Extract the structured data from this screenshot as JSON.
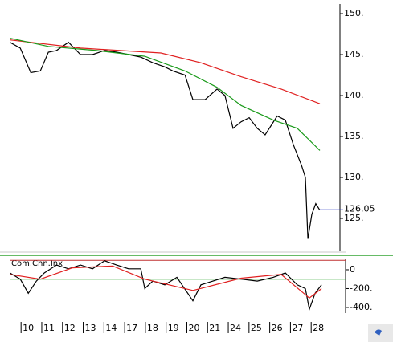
{
  "chart_data": [
    {
      "type": "line",
      "xlim": [
        -0.55,
        15.66
      ],
      "ylim": [
        120.98,
        151.18
      ],
      "yticks": [
        {
          "value": 150,
          "label": "150."
        },
        {
          "value": 145,
          "label": "145."
        },
        {
          "value": 140,
          "label": "140."
        },
        {
          "value": 135,
          "label": "135."
        },
        {
          "value": 130,
          "label": "130."
        },
        {
          "value": 125,
          "label": "125."
        }
      ],
      "series": [
        {
          "color": "#000000",
          "x": [
            -0.54,
            -0.04,
            0.47,
            0.93,
            1.32,
            1.71,
            2.29,
            2.87,
            3.45,
            4.03,
            4.61,
            5.19,
            5.78,
            6.36,
            6.94,
            7.33,
            7.91,
            8.29,
            8.88,
            9.46,
            9.84,
            10.23,
            10.62,
            11.01,
            11.4,
            11.78,
            12.36,
            12.75,
            13.14,
            13.53,
            13.72,
            13.84,
            14.03,
            14.22,
            14.42
          ],
          "values": [
            146.5,
            145.8,
            142.8,
            143,
            145.3,
            145.5,
            146.5,
            145,
            145,
            145.5,
            145.3,
            145,
            144.7,
            144,
            143.5,
            143,
            142.5,
            139.5,
            139.5,
            140.8,
            140,
            136,
            136.8,
            137.3,
            136,
            135.2,
            137.5,
            137,
            134,
            131.5,
            130,
            122.5,
            125.5,
            126.8,
            126
          ]
        },
        {
          "color": "#e02020",
          "x": [
            -0.54,
            2.87,
            6.75,
            8.68,
            10.62,
            12.55,
            14.42
          ],
          "values": [
            146.8,
            145.8,
            145.2,
            144,
            142.3,
            140.8,
            139
          ]
        },
        {
          "color": "#1a9a1a",
          "x": [
            -0.54,
            1.32,
            3.64,
            5.97,
            7.91,
            9.46,
            10.62,
            12.17,
            13.33,
            14.42
          ],
          "values": [
            147,
            146,
            145.5,
            144.8,
            143,
            141,
            138.8,
            137,
            136,
            133.3
          ]
        }
      ],
      "last_value": 126.05,
      "last_color": "#2030c0"
    },
    {
      "type": "line",
      "title": "Com.Chn.Inx",
      "xlim": [
        -0.55,
        15.66
      ],
      "ylim": [
        -460,
        119
      ],
      "yticks": [
        0,
        {
          "value": -200,
          "label": "-200."
        },
        {
          "value": -400,
          "label": "-400."
        }
      ],
      "levels": [
        {
          "value": 100,
          "color": "#c03030"
        },
        {
          "value": -100,
          "color": "#20a020"
        }
      ],
      "series": [
        {
          "color": "#000000",
          "x": [
            -0.54,
            -0.04,
            0.35,
            0.74,
            1.12,
            1.71,
            2.29,
            2.87,
            3.45,
            4.03,
            4.61,
            5.19,
            5.78,
            5.97,
            6.36,
            6.94,
            7.52,
            8.29,
            8.68,
            9.26,
            9.84,
            10.62,
            11.4,
            12.17,
            12.75,
            13.33,
            13.72,
            13.91,
            14.19,
            14.5
          ],
          "values": [
            -34,
            -100,
            -250,
            -120,
            -34,
            50,
            10,
            50,
            10,
            95,
            50,
            10,
            10,
            -200,
            -120,
            -160,
            -80,
            -330,
            -160,
            -120,
            -80,
            -100,
            -120,
            -80,
            -34,
            -160,
            -200,
            -420,
            -250,
            -160
          ]
        },
        {
          "color": "#e02020",
          "x": [
            -0.54,
            0.93,
            2.48,
            4.42,
            5.97,
            8.29,
            10.62,
            12.55,
            13.91,
            14.5
          ],
          "values": [
            -50,
            -100,
            20,
            40,
            -100,
            -220,
            -90,
            -50,
            -300,
            -200
          ]
        }
      ],
      "xticks": [
        {
          "value": 0,
          "label": "10"
        },
        {
          "value": 1,
          "label": "11"
        },
        {
          "value": 2,
          "label": "12"
        },
        {
          "value": 3,
          "label": "13"
        },
        {
          "value": 4,
          "label": "14"
        },
        {
          "value": 5,
          "label": "17"
        },
        {
          "value": 6,
          "label": "18"
        },
        {
          "value": 7,
          "label": "19"
        },
        {
          "value": 8,
          "label": "20"
        },
        {
          "value": 9,
          "label": "21"
        },
        {
          "value": 10,
          "label": "24"
        },
        {
          "value": 11,
          "label": "25"
        },
        {
          "value": 12,
          "label": "26"
        },
        {
          "value": 13,
          "label": "27"
        },
        {
          "value": 14,
          "label": "28"
        }
      ]
    }
  ]
}
